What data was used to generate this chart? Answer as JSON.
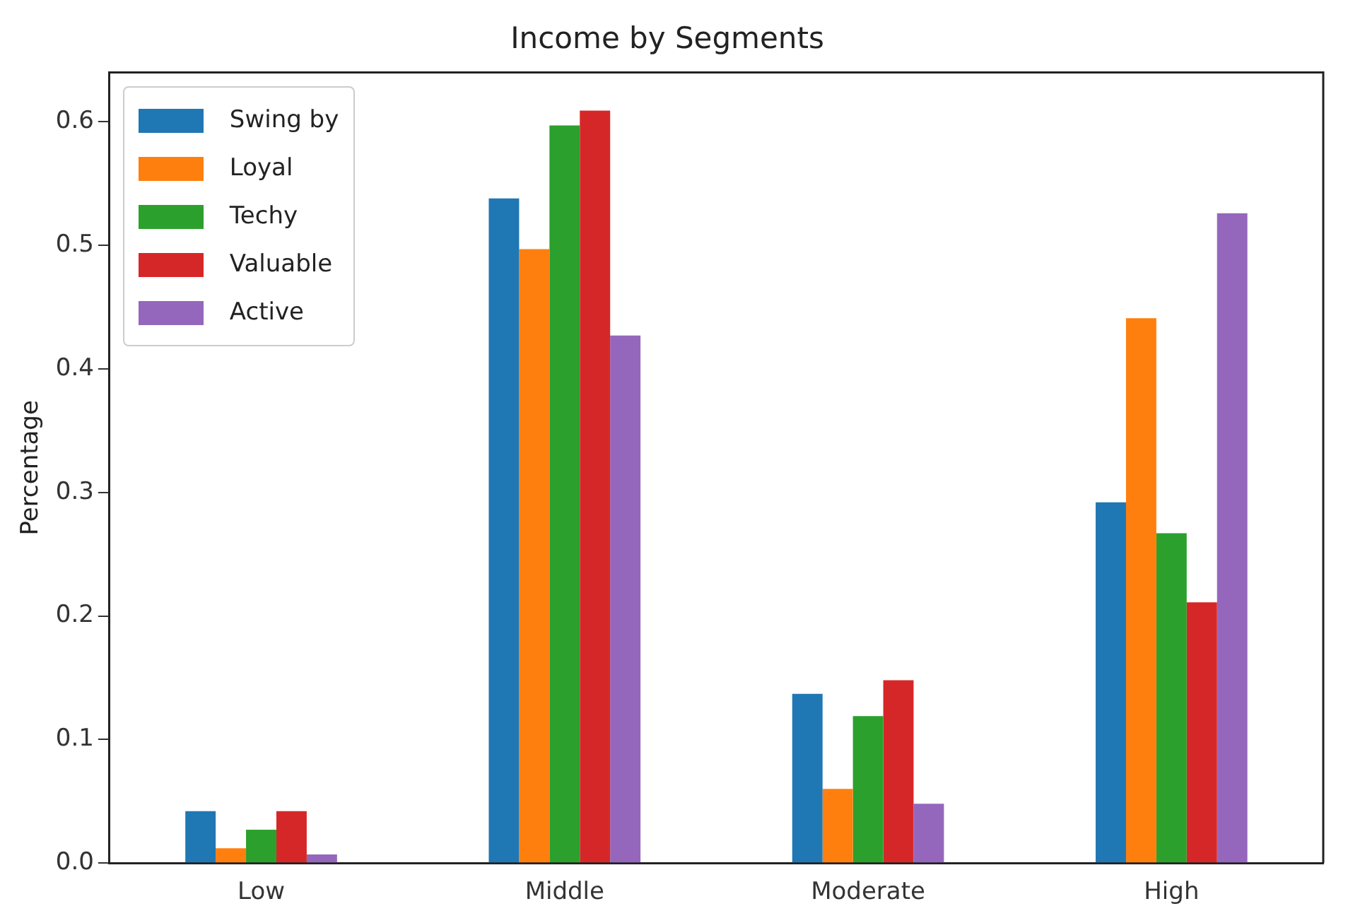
{
  "chart_data": {
    "type": "bar",
    "title": "Income by Segments",
    "ylabel": "Percentage",
    "categories": [
      "Low",
      "Middle",
      "Moderate",
      "High"
    ],
    "series": [
      {
        "name": "Swing by",
        "color": "#1f77b4",
        "values": [
          0.042,
          0.538,
          0.137,
          0.292
        ]
      },
      {
        "name": "Loyal",
        "color": "#ff7f0e",
        "values": [
          0.012,
          0.497,
          0.06,
          0.441
        ]
      },
      {
        "name": "Techy",
        "color": "#2ca02c",
        "values": [
          0.027,
          0.597,
          0.119,
          0.267
        ]
      },
      {
        "name": "Valuable",
        "color": "#d62728",
        "values": [
          0.042,
          0.609,
          0.148,
          0.211
        ]
      },
      {
        "name": "Active",
        "color": "#9467bd",
        "values": [
          0.007,
          0.427,
          0.048,
          0.526
        ]
      }
    ],
    "ylim": [
      0,
      0.64
    ],
    "yticks": [
      {
        "value": 0,
        "label": "0.0"
      },
      0.1,
      0.2,
      0.3,
      0.4,
      0.5,
      0.6
    ],
    "grid": false,
    "legend": "top left"
  }
}
